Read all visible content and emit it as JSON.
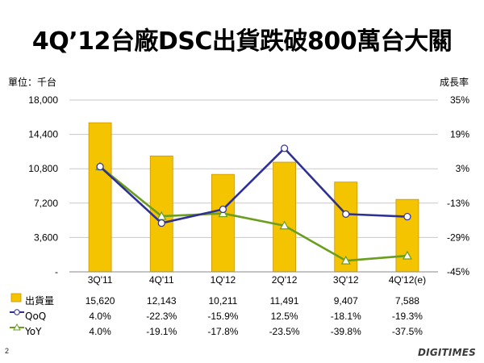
{
  "title": "4Q’12台廠DSC出貨跌破800萬台大關",
  "left_unit_label": "單位：千台",
  "right_unit_label": "成長率",
  "page_number": "2",
  "brand_logo": "DIGITIMES",
  "colors": {
    "bar": "#F5C400",
    "bar_edge": "#C89600",
    "qoq": "#2E3192",
    "yoy": "#6A9E1F",
    "grid": "#C8C8C8"
  },
  "chart_data": {
    "type": "bar",
    "categories": [
      "3Q'11",
      "4Q'11",
      "1Q'12",
      "2Q'12",
      "3Q'12",
      "4Q'12(e)"
    ],
    "series": [
      {
        "name": "出貨量",
        "type": "bar",
        "axis": "left",
        "values": [
          15620,
          12143,
          10211,
          11491,
          9407,
          7588
        ],
        "labels": [
          "15,620",
          "12,143",
          "10,211",
          "11,491",
          "9,407",
          "7,588"
        ]
      },
      {
        "name": "QoQ",
        "type": "line",
        "axis": "right",
        "values": [
          4.0,
          -22.3,
          -15.9,
          12.5,
          -18.1,
          -19.3
        ],
        "labels": [
          "4.0%",
          "-22.3%",
          "-15.9%",
          "12.5%",
          "-18.1%",
          "-19.3%"
        ]
      },
      {
        "name": "YoY",
        "type": "line",
        "axis": "right",
        "values": [
          4.0,
          -19.1,
          -17.8,
          -23.5,
          -39.8,
          -37.5
        ],
        "labels": [
          "4.0%",
          "-19.1%",
          "-17.8%",
          "-23.5%",
          "-39.8%",
          "-37.5%"
        ]
      }
    ],
    "y_left": {
      "min": 0,
      "max": 18000,
      "ticks": [
        0,
        3600,
        7200,
        10800,
        14400,
        18000
      ],
      "tick_labels": [
        "-",
        "3,600",
        "7,200",
        "10,800",
        "14,400",
        "18,000"
      ]
    },
    "y_right": {
      "min": -45,
      "max": 35,
      "ticks": [
        -45,
        -29,
        -13,
        3,
        19,
        35
      ],
      "tick_labels": [
        "-45%",
        "-29%",
        "-13%",
        "3%",
        "19%",
        "35%"
      ]
    },
    "grid": true,
    "legend_placement": "data-table"
  }
}
